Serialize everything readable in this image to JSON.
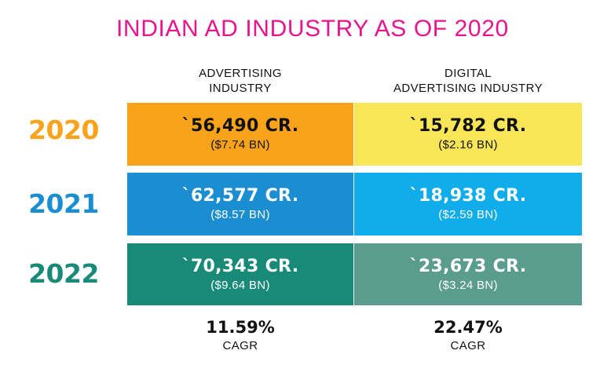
{
  "title": "INDIAN AD INDUSTRY AS OF 2020",
  "columns": [
    {
      "line1": "ADVERTISING",
      "line2": "INDUSTRY"
    },
    {
      "line1": "DIGITAL",
      "line2": "ADVERTISING INDUSTRY"
    }
  ],
  "rows": [
    {
      "year": "2020",
      "year_color": "#f9a31b",
      "advertising": {
        "amount": "`56,490 CR.",
        "usd": "($7.74 BN)",
        "color": "#f9a31b"
      },
      "digital": {
        "amount": "`15,782 CR.",
        "usd": "($2.16 BN)",
        "color": "#f9e657"
      }
    },
    {
      "year": "2021",
      "year_color": "#1a8ed1",
      "advertising": {
        "amount": "`62,577 CR.",
        "usd": "($8.57 BN)",
        "color": "#1a8ed1"
      },
      "digital": {
        "amount": "`18,938 CR.",
        "usd": "($2.59 BN)",
        "color": "#11acea"
      }
    },
    {
      "year": "2022",
      "year_color": "#198a78",
      "advertising": {
        "amount": "`70,343 CR.",
        "usd": "($9.64 BN)",
        "color": "#198a78"
      },
      "digital": {
        "amount": "`23,673 CR.",
        "usd": "($3.24 BN)",
        "color": "#5a9d8e"
      }
    }
  ],
  "cagr": [
    {
      "value": "11.59%",
      "label": "CAGR"
    },
    {
      "value": "22.47%",
      "label": "CAGR"
    }
  ],
  "colors": {
    "title": "#e6158f"
  }
}
